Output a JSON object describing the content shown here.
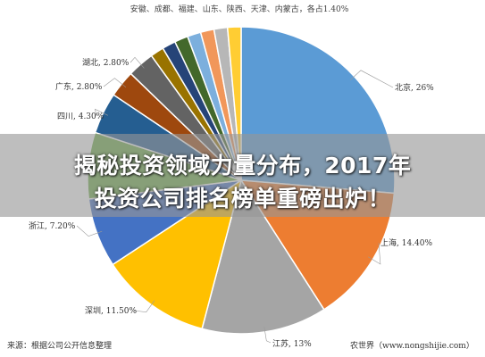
{
  "chart_data": {
    "type": "pie",
    "slices": [
      {
        "label": "北京, 26%",
        "value": 26.0,
        "color": "#5b9bd5"
      },
      {
        "label": "上海, 14.40%",
        "value": 14.4,
        "color": "#ed7d31"
      },
      {
        "label": "江苏, 13%",
        "value": 13.0,
        "color": "#a5a5a5"
      },
      {
        "label": "深圳, 11.50%",
        "value": 11.5,
        "color": "#ffc000"
      },
      {
        "label": "浙江, 7.20%",
        "value": 7.2,
        "color": "#4472c4"
      },
      {
        "label": "",
        "value": 6.9,
        "color": "#70ad47"
      },
      {
        "label": "四川, 4.30%",
        "value": 4.3,
        "color": "#255e91"
      },
      {
        "label": "广东, 2.80%",
        "value": 2.8,
        "color": "#9e480e"
      },
      {
        "label": "湖北, 2.80%",
        "value": 2.8,
        "color": "#636363"
      },
      {
        "label": "",
        "value": 1.4,
        "color": "#997300"
      },
      {
        "label": "",
        "value": 1.4,
        "color": "#264478"
      },
      {
        "label": "",
        "value": 1.4,
        "color": "#43682b"
      },
      {
        "label": "",
        "value": 1.4,
        "color": "#7cafdd"
      },
      {
        "label": "",
        "value": 1.4,
        "color": "#f1975a"
      },
      {
        "label": "",
        "value": 1.4,
        "color": "#b7b7b7"
      },
      {
        "label": "",
        "value": 1.4,
        "color": "#ffcd33"
      }
    ],
    "top_label": "安徽、成都、福建、山东、陕西、天津、内蒙古，各占1.40%"
  },
  "banner": {
    "line1": "揭秘投资领域力量分布，2017年",
    "line2": "投资公司排名榜单重磅出炉！"
  },
  "footer": {
    "source": "来源：根据公司公开信息整理",
    "watermark": "农世界（www.nongshijie.com）"
  }
}
